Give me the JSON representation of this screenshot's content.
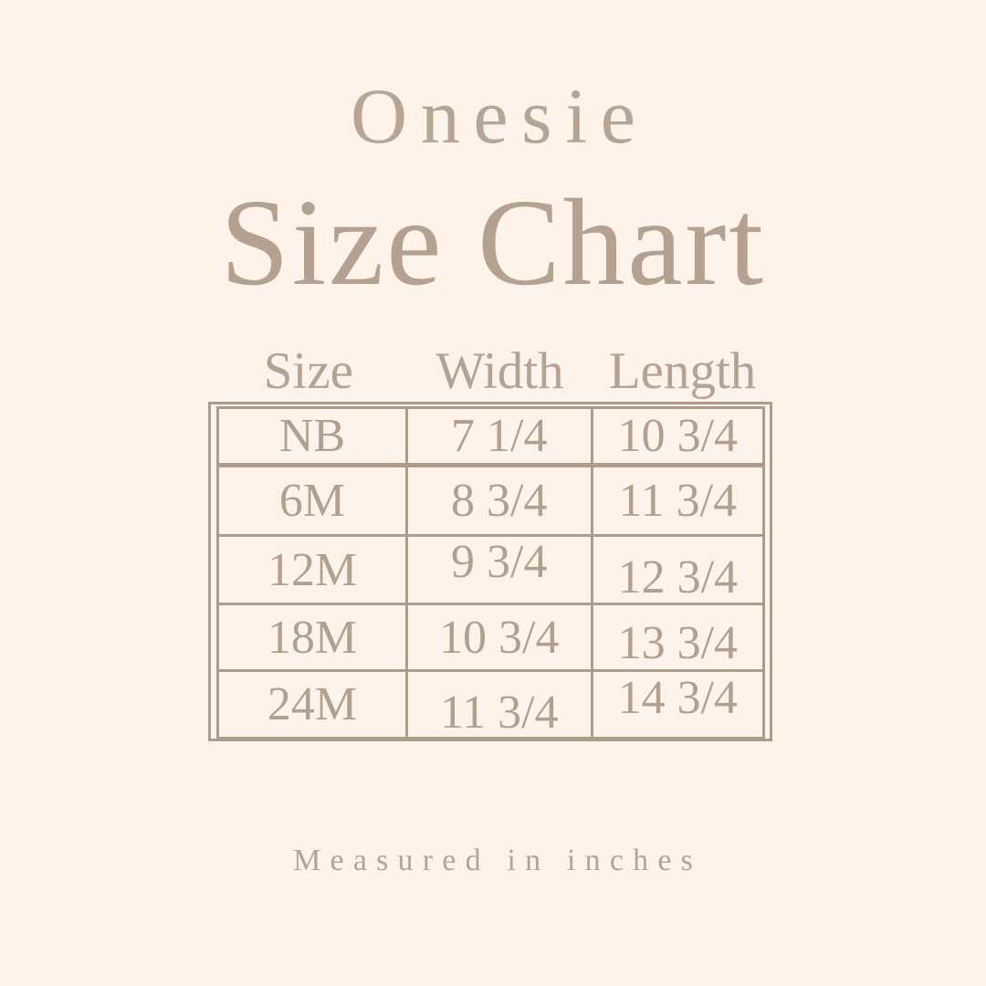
{
  "header": {
    "subtitle": "Onesie",
    "title": "Size Chart"
  },
  "table": {
    "columns": [
      "Size",
      "Width",
      "Length"
    ],
    "rows": [
      {
        "size": "NB",
        "width": "7 1/4",
        "length": "10 3/4"
      },
      {
        "size": "6M",
        "width": "8 3/4",
        "length": "11 3/4"
      },
      {
        "size": "12M",
        "width": "9 3/4",
        "length": "12 3/4"
      },
      {
        "size": "18M",
        "width": "10 3/4",
        "length": "13 3/4"
      },
      {
        "size": "24M",
        "width": "11 3/4",
        "length": "14 3/4"
      }
    ]
  },
  "footer": {
    "note": "Measured in inches"
  },
  "colors": {
    "background": "#fdf3ea",
    "text": "#b5a291",
    "table_border": "#ae9b8a"
  },
  "chart_data": {
    "type": "table",
    "title": "Onesie Size Chart",
    "columns": [
      "Size",
      "Width",
      "Length"
    ],
    "rows": [
      [
        "NB",
        "7 1/4",
        "10 3/4"
      ],
      [
        "6M",
        "8 3/4",
        "11 3/4"
      ],
      [
        "12M",
        "9 3/4",
        "12 3/4"
      ],
      [
        "18M",
        "10 3/4",
        "13 3/4"
      ],
      [
        "24M",
        "11 3/4",
        "14 3/4"
      ]
    ],
    "units": "inches"
  }
}
